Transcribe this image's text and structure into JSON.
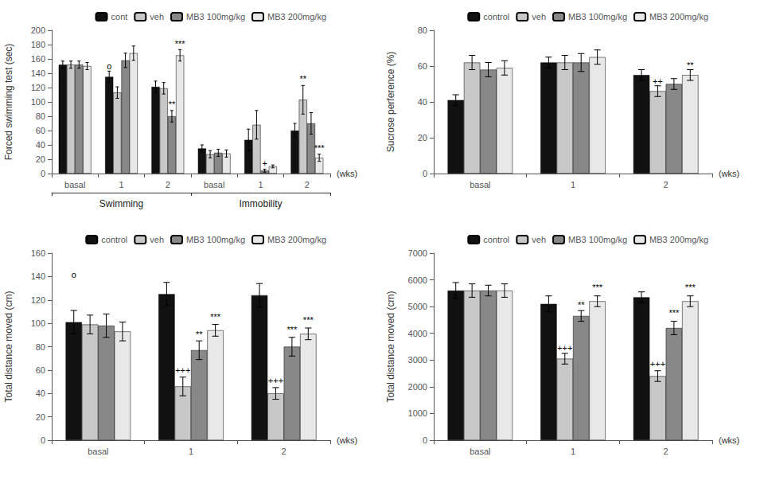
{
  "chart_data": [
    {
      "type": "bar",
      "ylabel": "Forced swimming test (sec)",
      "xlabel": "(wks)",
      "group_labels": [
        "Swimming",
        "Immobility"
      ],
      "categories": [
        "basal",
        "1",
        "2",
        "basal",
        "1",
        "2"
      ],
      "series": [
        {
          "name": "cont",
          "color": "#111111",
          "values": [
            152,
            135,
            121,
            35,
            47,
            60
          ],
          "errors": [
            5,
            8,
            8,
            5,
            15,
            10
          ]
        },
        {
          "name": "veh",
          "color": "#c8c8c8",
          "values": [
            152,
            113,
            119,
            27,
            68,
            103
          ],
          "errors": [
            5,
            8,
            8,
            5,
            20,
            20
          ]
        },
        {
          "name": "MB3 100mg/kg",
          "color": "#888888",
          "values": [
            152,
            158,
            80,
            29,
            4,
            70
          ],
          "errors": [
            5,
            10,
            8,
            5,
            2,
            15
          ]
        },
        {
          "name": "MB3 200mg/kg",
          "color": "#e8e8e8",
          "values": [
            150,
            168,
            165,
            28,
            10,
            22
          ],
          "errors": [
            5,
            10,
            8,
            5,
            2,
            5
          ]
        }
      ],
      "ylim": [
        0,
        200
      ],
      "yticks": [
        0,
        20,
        40,
        60,
        80,
        100,
        120,
        140,
        160,
        180,
        200
      ],
      "grid": false,
      "legend": "upper right",
      "annotations": [
        {
          "text": "o",
          "group": "Swimming",
          "category": "1",
          "series": "cont",
          "y": 144
        },
        {
          "text": "**",
          "group": "Swimming",
          "category": "2",
          "series": "MB3 100mg/kg",
          "y": 91
        },
        {
          "text": "***",
          "group": "Swimming",
          "category": "2",
          "series": "MB3 200mg/kg",
          "y": 175
        },
        {
          "text": "**",
          "group": "Immobility",
          "category": "2",
          "series": "veh",
          "y": 126
        },
        {
          "text": "+",
          "group": "Immobility",
          "category": "1",
          "series": "MB3 100mg/kg",
          "y": 8
        },
        {
          "text": "***",
          "group": "Immobility",
          "category": "2",
          "series": "MB3 200mg/kg",
          "y": 29
        }
      ]
    },
    {
      "type": "bar",
      "ylabel": "Sucrose perference (%)",
      "xlabel": "(wks)",
      "categories": [
        "basal",
        "1",
        "2"
      ],
      "series": [
        {
          "name": "control",
          "color": "#111111",
          "values": [
            41,
            62,
            55
          ],
          "errors": [
            3,
            3,
            3
          ]
        },
        {
          "name": "veh",
          "color": "#c8c8c8",
          "values": [
            62,
            62,
            46
          ],
          "errors": [
            4,
            4,
            3
          ]
        },
        {
          "name": "MB3 100mg/kg",
          "color": "#888888",
          "values": [
            58,
            62,
            50
          ],
          "errors": [
            4,
            5,
            3
          ]
        },
        {
          "name": "MB3 200mg/kg",
          "color": "#e8e8e8",
          "values": [
            59,
            65,
            55
          ],
          "errors": [
            4,
            4,
            3
          ]
        }
      ],
      "ylim": [
        0,
        80
      ],
      "yticks": [
        0,
        20,
        40,
        60,
        80
      ],
      "grid": false,
      "legend": "upper right",
      "annotations": [
        {
          "text": "++",
          "category": "2",
          "series": "veh",
          "y": 49
        },
        {
          "text": "**",
          "category": "2",
          "series": "MB3 200mg/kg",
          "y": 58
        }
      ]
    },
    {
      "type": "bar",
      "ylabel": "Total distance moved (cm)",
      "xlabel": "(wks)",
      "categories": [
        "basal",
        "1",
        "2"
      ],
      "series": [
        {
          "name": "control",
          "color": "#111111",
          "values": [
            101,
            125,
            124
          ],
          "errors": [
            10,
            10,
            10
          ]
        },
        {
          "name": "veh",
          "color": "#c8c8c8",
          "values": [
            99,
            46,
            40
          ],
          "errors": [
            8,
            8,
            5
          ]
        },
        {
          "name": "MB3 100mg/kg",
          "color": "#888888",
          "values": [
            98,
            77,
            80
          ],
          "errors": [
            10,
            8,
            8
          ]
        },
        {
          "name": "MB3 200mg/kg",
          "color": "#e8e8e8",
          "values": [
            93,
            94,
            91
          ],
          "errors": [
            8,
            5,
            5
          ]
        }
      ],
      "ylim": [
        0,
        160
      ],
      "yticks": [
        0,
        20,
        40,
        60,
        80,
        100,
        120,
        140,
        160
      ],
      "grid": false,
      "legend": "upper right",
      "annotations": [
        {
          "text": "o",
          "category": "basal",
          "series": "control",
          "y": 138
        },
        {
          "text": "+++",
          "category": "1",
          "series": "veh",
          "y": 56
        },
        {
          "text": "**",
          "category": "1",
          "series": "MB3 100mg/kg",
          "y": 87
        },
        {
          "text": "***",
          "category": "1",
          "series": "MB3 200mg/kg",
          "y": 102
        },
        {
          "text": "+++",
          "category": "2",
          "series": "veh",
          "y": 47
        },
        {
          "text": "***",
          "category": "2",
          "series": "MB3 100mg/kg",
          "y": 91
        },
        {
          "text": "***",
          "category": "2",
          "series": "MB3 200mg/kg",
          "y": 99
        }
      ]
    },
    {
      "type": "bar",
      "ylabel": "Total distance moved (cm)",
      "xlabel": "(wks)",
      "categories": [
        "basal",
        "1",
        "2"
      ],
      "series": [
        {
          "name": "control",
          "color": "#111111",
          "values": [
            5600,
            5100,
            5350
          ],
          "errors": [
            300,
            300,
            200
          ]
        },
        {
          "name": "veh",
          "color": "#c8c8c8",
          "values": [
            5600,
            3050,
            2400
          ],
          "errors": [
            250,
            200,
            200
          ]
        },
        {
          "name": "MB3 100mg/kg",
          "color": "#888888",
          "values": [
            5600,
            4650,
            4200
          ],
          "errors": [
            200,
            200,
            250
          ]
        },
        {
          "name": "MB3 200mg/kg",
          "color": "#e8e8e8",
          "values": [
            5600,
            5200,
            5200
          ],
          "errors": [
            250,
            200,
            200
          ]
        }
      ],
      "ylim": [
        0,
        7000
      ],
      "yticks": [
        0,
        1000,
        2000,
        3000,
        4000,
        5000,
        6000,
        7000
      ],
      "grid": false,
      "legend": "upper right",
      "annotations": [
        {
          "text": "+++",
          "category": "1",
          "series": "veh",
          "y": 3300
        },
        {
          "text": "**",
          "category": "1",
          "series": "MB3 100mg/kg",
          "y": 4900
        },
        {
          "text": "***",
          "category": "1",
          "series": "MB3 200mg/kg",
          "y": 5550
        },
        {
          "text": "+++",
          "category": "2",
          "series": "veh",
          "y": 2700
        },
        {
          "text": "***",
          "category": "2",
          "series": "MB3 100mg/kg",
          "y": 4600
        },
        {
          "text": "***",
          "category": "2",
          "series": "MB3 200mg/kg",
          "y": 5550
        }
      ]
    }
  ]
}
